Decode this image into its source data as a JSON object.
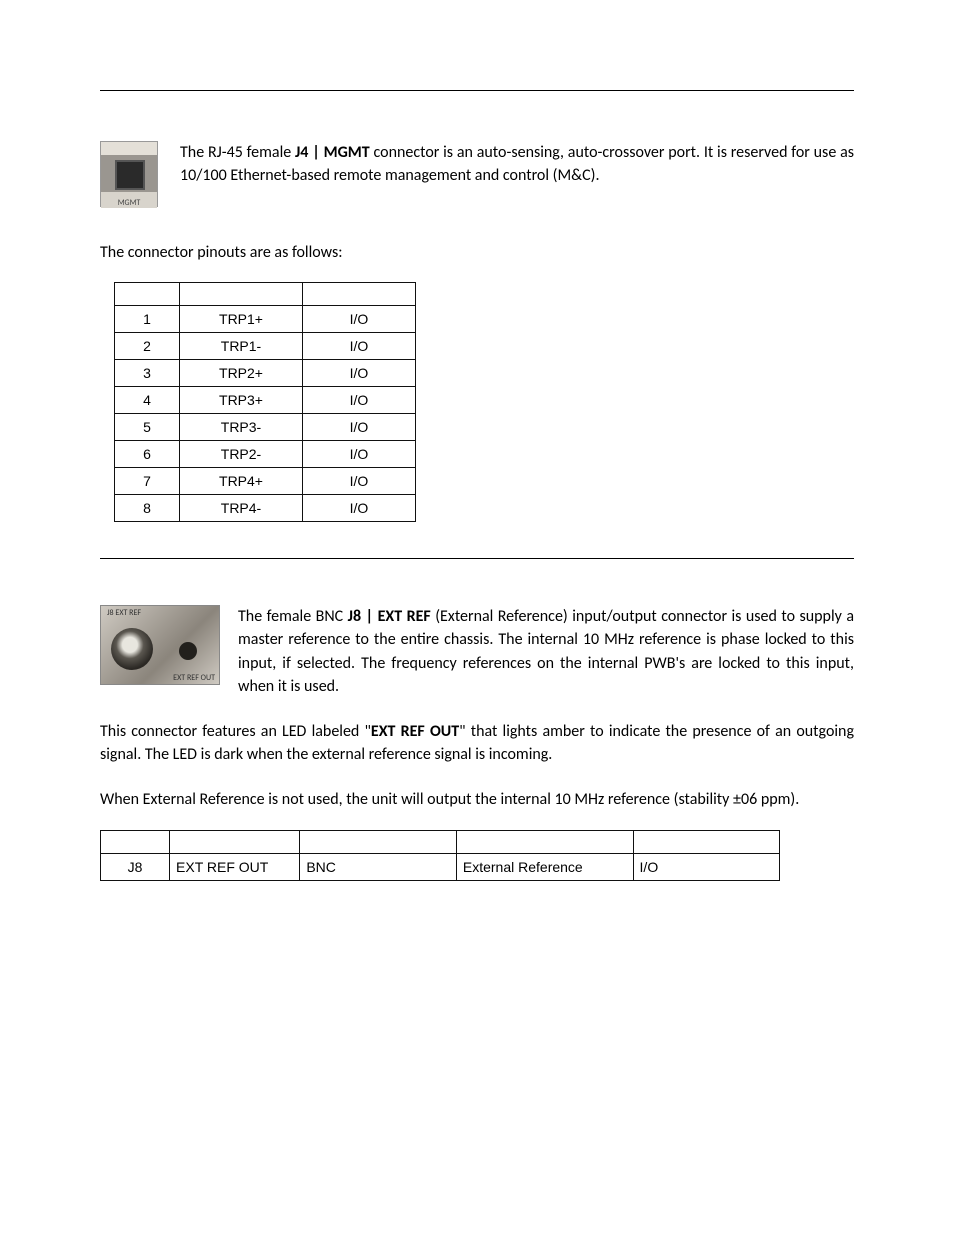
{
  "section1": {
    "thumb_label": "MGMT",
    "intro_pre": "The RJ-45 female ",
    "intro_bold": "J4 | MGMT",
    "intro_post": " connector is an auto-sensing, auto-crossover port. It is reserved for use as 10/100 Ethernet-based remote management and control (M&C).",
    "pinout_intro": "The connector pinouts are as follows:",
    "pin_table": {
      "headers": [
        "",
        "",
        ""
      ],
      "rows": [
        [
          "1",
          "TRP1+",
          "I/O"
        ],
        [
          "2",
          "TRP1-",
          "I/O"
        ],
        [
          "3",
          "TRP2+",
          "I/O"
        ],
        [
          "4",
          "TRP3+",
          "I/O"
        ],
        [
          "5",
          "TRP3-",
          "I/O"
        ],
        [
          "6",
          "TRP2-",
          "I/O"
        ],
        [
          "7",
          "TRP4+",
          "I/O"
        ],
        [
          "8",
          "TRP4-",
          "I/O"
        ]
      ]
    }
  },
  "section2": {
    "thumb_top": "J8\nEXT REF",
    "thumb_bottom": "EXT\nREF\nOUT",
    "p1_pre": "The female BNC ",
    "p1_bold": "J8 | EXT REF",
    "p1_post": " (External Reference) input/output connector is used to supply a master reference to the entire chassis. The internal 10 MHz reference is phase locked to this input, if selected. The frequency references on the internal PWB's are locked to this input, when it is used.",
    "p2_pre": "This connector features an LED labeled \"",
    "p2_bold": "EXT REF OUT",
    "p2_post": "\" that lights amber to indicate the presence of an outgoing signal. The LED is dark when the external reference signal is incoming.",
    "p3": "When External Reference is not used, the unit will output the internal 10 MHz reference (stability ±06 ppm).",
    "ref_table": {
      "headers": [
        "",
        "",
        "",
        "",
        ""
      ],
      "row": [
        "J8",
        "EXT REF OUT",
        "BNC",
        "External Reference",
        "I/O"
      ]
    }
  }
}
